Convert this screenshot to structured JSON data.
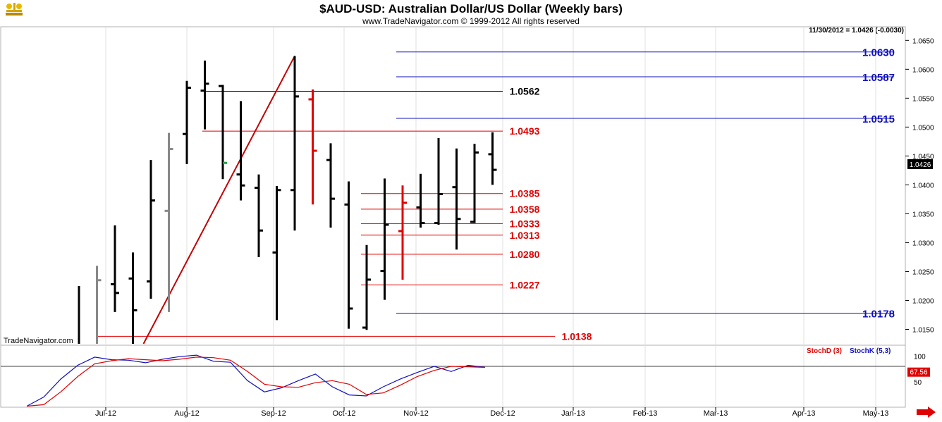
{
  "header": {
    "title": "$AUD-USD:  Australian Dollar/US Dollar  (Weekly bars)",
    "copyright": "www.TradeNavigator.com © 1999-2012 All rights reserved",
    "last_quote": "11/30/2012 = 1.0426 (-0.0030)",
    "watermark": "TradeNavigator.com",
    "logo_icon": "scales-logo-icon",
    "scroll_icon": "right-arrow-icon"
  },
  "colors": {
    "bar": "#000000",
    "bar_up_hist": "#888888",
    "bar_highlight": "#e00000",
    "fib_red": "#e00000",
    "fib_blue": "#1010c0",
    "stochD": "#e00000",
    "stochK": "#1010c0",
    "scroll_arrow": "#e00000"
  },
  "chart_data": [
    {
      "type": "ohlc",
      "title": "$AUD-USD:  Australian Dollar/US Dollar  (Weekly bars)",
      "y_axis_side": "right",
      "ylim": [
        1.0125,
        1.0665
      ],
      "y_ticks": [
        "1.0650",
        "1.0600",
        "1.0550",
        "1.0500",
        "1.0450",
        "1.0400",
        "1.0350",
        "1.0300",
        "1.0250",
        "1.0200",
        "1.0150"
      ],
      "current_price_label": "1.0426",
      "x_ticks": [
        "Jul-12",
        "Aug-12",
        "Sep-12",
        "Oct-12",
        "Nov-12",
        "Dec-12",
        "Jan-13",
        "Feb-13",
        "Mar-13",
        "Apr-13",
        "May-13"
      ],
      "bars": [
        {
          "h": 1.0225,
          "l": 1.0125,
          "o": null,
          "c": null,
          "color": "black"
        },
        {
          "h": 1.026,
          "l": 1.0125,
          "o": null,
          "c": 1.0235,
          "color": "gray"
        },
        {
          "h": 1.033,
          "l": 1.018,
          "o": 1.0228,
          "c": 1.0213,
          "color": "black"
        },
        {
          "h": 1.0283,
          "l": 1.0125,
          "o": 1.0238,
          "c": 1.0183,
          "color": "black"
        },
        {
          "h": 1.0443,
          "l": 1.0203,
          "o": 1.0233,
          "c": 1.0373,
          "color": "black"
        },
        {
          "h": 1.049,
          "l": 1.018,
          "o": 1.0355,
          "c": 1.0462,
          "color": "gray"
        },
        {
          "h": 1.058,
          "l": 1.0436,
          "o": 1.0488,
          "c": 1.0568,
          "color": "black"
        },
        {
          "h": 1.0615,
          "l": 1.0496,
          "o": 1.0563,
          "c": 1.0575,
          "color": "black"
        },
        {
          "h": 1.0573,
          "l": 1.041,
          "o": 1.0571,
          "c": 1.0438,
          "color": "black",
          "tick_highlight": "green"
        },
        {
          "h": 1.0545,
          "l": 1.0373,
          "o": 1.0418,
          "c": 1.0399,
          "color": "black"
        },
        {
          "h": 1.0418,
          "l": 1.0275,
          "o": 1.0395,
          "c": 1.0321,
          "color": "black"
        },
        {
          "h": 1.0398,
          "l": 1.0166,
          "o": 1.0283,
          "c": 1.0391,
          "color": "black"
        },
        {
          "h": 1.0623,
          "l": 1.0321,
          "o": 1.0391,
          "c": 1.0553,
          "color": "black"
        },
        {
          "h": 1.0565,
          "l": 1.0366,
          "o": 1.0548,
          "c": 1.0459,
          "color": "red"
        },
        {
          "h": 1.0472,
          "l": 1.0326,
          "o": 1.0443,
          "c": 1.0376,
          "color": "black"
        },
        {
          "h": 1.0406,
          "l": 1.0151,
          "o": 1.0366,
          "c": 1.0186,
          "color": "black"
        },
        {
          "h": 1.0296,
          "l": 1.0149,
          "o": 1.0153,
          "c": 1.0236,
          "color": "black"
        },
        {
          "h": 1.0411,
          "l": 1.0201,
          "o": 1.0251,
          "c": 1.0331,
          "color": "black"
        },
        {
          "h": 1.0399,
          "l": 1.0236,
          "o": 1.032,
          "c": 1.0369,
          "color": "red"
        },
        {
          "h": 1.0419,
          "l": 1.0326,
          "o": 1.0361,
          "c": 1.0334,
          "color": "black"
        },
        {
          "h": 1.0481,
          "l": 1.0331,
          "o": 1.0334,
          "c": 1.0384,
          "color": "black"
        },
        {
          "h": 1.0463,
          "l": 1.0288,
          "o": 1.0396,
          "c": 1.0341,
          "color": "black"
        },
        {
          "h": 1.0471,
          "l": 1.0334,
          "o": 1.0336,
          "c": 1.0456,
          "color": "black"
        },
        {
          "h": 1.0491,
          "l": 1.04,
          "o": 1.0453,
          "c": 1.0426,
          "color": "black"
        }
      ],
      "levels": [
        {
          "label": "1.0630",
          "value": 1.063,
          "color": "blue"
        },
        {
          "label": "1.0587",
          "value": 1.0587,
          "color": "blue"
        },
        {
          "label": "1.0562",
          "value": 1.0562,
          "color": "black"
        },
        {
          "label": "1.0515",
          "value": 1.0515,
          "color": "blue"
        },
        {
          "label": "1.0493",
          "value": 1.0493,
          "color": "red"
        },
        {
          "label": "1.0385",
          "value": 1.0385,
          "color": "red"
        },
        {
          "label": "1.0358",
          "value": 1.0358,
          "color": "red"
        },
        {
          "label": "1.0333",
          "value": 1.0333,
          "color": "red"
        },
        {
          "label": "1.0313",
          "value": 1.0313,
          "color": "red"
        },
        {
          "label": "1.0280",
          "value": 1.028,
          "color": "red"
        },
        {
          "label": "1.0227",
          "value": 1.0227,
          "color": "red"
        },
        {
          "label": "1.0178",
          "value": 1.0178,
          "color": "blue"
        },
        {
          "label": "1.0138",
          "value": 1.0138,
          "color": "red"
        }
      ],
      "trendline": {
        "from_bar": 3,
        "from_value": 1.0125,
        "to_bar": 12,
        "to_value": 1.0623,
        "color": "dark-red"
      }
    },
    {
      "type": "line",
      "indicator": "stochastics",
      "ylim": [
        0,
        120
      ],
      "y_ticks": [
        "100",
        "50"
      ],
      "current_value_label": "67.56",
      "reference_line": 80,
      "legend": [
        "StochD (3)",
        "StochK (5,3)"
      ],
      "series": [
        {
          "name": "StochK (5,3)",
          "values": [
            2,
            20,
            55,
            82,
            98,
            93,
            92,
            87,
            94,
            99,
            102,
            90,
            88,
            52,
            30,
            38,
            52,
            65,
            40,
            24,
            22,
            40,
            55,
            68,
            80,
            70,
            82,
            78
          ]
        },
        {
          "name": "StochD (3)",
          "values": [
            2,
            5,
            30,
            60,
            85,
            91,
            95,
            93,
            91,
            94,
            98,
            97,
            92,
            70,
            45,
            40,
            39,
            48,
            52,
            45,
            25,
            28,
            43,
            60,
            72,
            80,
            79,
            78
          ]
        }
      ]
    }
  ]
}
